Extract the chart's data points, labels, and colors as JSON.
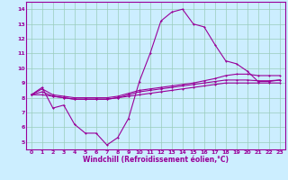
{
  "x_hours": [
    0,
    1,
    2,
    3,
    4,
    5,
    6,
    7,
    8,
    9,
    10,
    11,
    12,
    13,
    14,
    15,
    16,
    17,
    18,
    19,
    20,
    21,
    22,
    23
  ],
  "line1": [
    8.2,
    8.7,
    7.3,
    7.5,
    6.2,
    5.6,
    5.6,
    4.8,
    5.3,
    6.6,
    9.1,
    11.0,
    13.2,
    13.8,
    14.0,
    13.0,
    12.8,
    11.6,
    10.5,
    10.3,
    9.8,
    9.1,
    9.1,
    9.2
  ],
  "line2": [
    8.2,
    8.2,
    8.1,
    8.0,
    7.9,
    7.9,
    7.9,
    7.9,
    8.0,
    8.1,
    8.2,
    8.3,
    8.4,
    8.5,
    8.6,
    8.7,
    8.8,
    8.9,
    9.0,
    9.0,
    9.0,
    9.0,
    9.0,
    9.0
  ],
  "line3": [
    8.2,
    8.4,
    8.1,
    8.0,
    7.9,
    7.9,
    7.9,
    7.9,
    8.0,
    8.2,
    8.4,
    8.5,
    8.6,
    8.7,
    8.8,
    8.9,
    9.0,
    9.1,
    9.2,
    9.2,
    9.2,
    9.15,
    9.15,
    9.2
  ],
  "line4": [
    8.2,
    8.6,
    8.2,
    8.1,
    8.0,
    8.0,
    8.0,
    8.0,
    8.1,
    8.3,
    8.5,
    8.6,
    8.7,
    8.8,
    8.9,
    9.0,
    9.15,
    9.3,
    9.5,
    9.6,
    9.6,
    9.5,
    9.5,
    9.5
  ],
  "line_color": "#990099",
  "bg_color": "#cceeff",
  "grid_color": "#99ccbb",
  "xlabel": "Windchill (Refroidissement éolien,°C)",
  "ylim": [
    4.5,
    14.5
  ],
  "xlim": [
    -0.5,
    23.5
  ],
  "yticks": [
    5,
    6,
    7,
    8,
    9,
    10,
    11,
    12,
    13,
    14
  ],
  "xticks": [
    0,
    1,
    2,
    3,
    4,
    5,
    6,
    7,
    8,
    9,
    10,
    11,
    12,
    13,
    14,
    15,
    16,
    17,
    18,
    19,
    20,
    21,
    22,
    23
  ]
}
